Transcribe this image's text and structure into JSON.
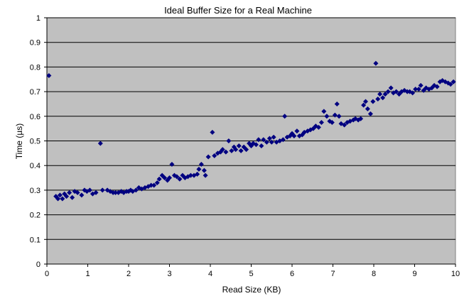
{
  "chart_data": {
    "type": "scatter",
    "title": "Ideal Buffer Size for a Real Machine",
    "xlabel": "Read Size (KB)",
    "ylabel": "Time (µs)",
    "xlim": [
      0,
      10
    ],
    "ylim": [
      0,
      1
    ],
    "x_ticks": [
      "0",
      "1",
      "2",
      "3",
      "4",
      "5",
      "6",
      "7",
      "8",
      "9",
      "10"
    ],
    "y_ticks": [
      "0",
      "0.1",
      "0.2",
      "0.3",
      "0.4",
      "0.5",
      "0.6",
      "0.7",
      "0.8",
      "0.9",
      "1"
    ],
    "grid": "horizontal",
    "legend": "none",
    "colors": {
      "plot_background": "#c0c0c0",
      "marker": "#000080",
      "gridline": "#000000"
    },
    "marker_shape": "diamond",
    "series": [
      {
        "points": [
          [
            0.05,
            0.765
          ],
          [
            0.22,
            0.275
          ],
          [
            0.27,
            0.265
          ],
          [
            0.32,
            0.28
          ],
          [
            0.38,
            0.265
          ],
          [
            0.43,
            0.285
          ],
          [
            0.48,
            0.275
          ],
          [
            0.55,
            0.29
          ],
          [
            0.62,
            0.27
          ],
          [
            0.68,
            0.295
          ],
          [
            0.75,
            0.29
          ],
          [
            0.85,
            0.28
          ],
          [
            0.92,
            0.3
          ],
          [
            0.98,
            0.295
          ],
          [
            1.05,
            0.3
          ],
          [
            1.12,
            0.285
          ],
          [
            1.2,
            0.29
          ],
          [
            1.31,
            0.49
          ],
          [
            1.36,
            0.3
          ],
          [
            1.48,
            0.3
          ],
          [
            1.55,
            0.295
          ],
          [
            1.62,
            0.29
          ],
          [
            1.68,
            0.29
          ],
          [
            1.75,
            0.29
          ],
          [
            1.82,
            0.295
          ],
          [
            1.88,
            0.29
          ],
          [
            1.95,
            0.295
          ],
          [
            2.0,
            0.295
          ],
          [
            2.05,
            0.3
          ],
          [
            2.1,
            0.295
          ],
          [
            2.18,
            0.3
          ],
          [
            2.25,
            0.31
          ],
          [
            2.32,
            0.305
          ],
          [
            2.4,
            0.31
          ],
          [
            2.48,
            0.315
          ],
          [
            2.55,
            0.32
          ],
          [
            2.62,
            0.32
          ],
          [
            2.7,
            0.33
          ],
          [
            2.75,
            0.345
          ],
          [
            2.82,
            0.36
          ],
          [
            2.88,
            0.35
          ],
          [
            2.95,
            0.34
          ],
          [
            3.0,
            0.35
          ],
          [
            3.06,
            0.405
          ],
          [
            3.12,
            0.36
          ],
          [
            3.18,
            0.355
          ],
          [
            3.25,
            0.345
          ],
          [
            3.32,
            0.36
          ],
          [
            3.38,
            0.35
          ],
          [
            3.45,
            0.355
          ],
          [
            3.52,
            0.36
          ],
          [
            3.6,
            0.36
          ],
          [
            3.68,
            0.365
          ],
          [
            3.72,
            0.385
          ],
          [
            3.78,
            0.405
          ],
          [
            3.85,
            0.38
          ],
          [
            3.88,
            0.36
          ],
          [
            3.95,
            0.435
          ],
          [
            4.05,
            0.535
          ],
          [
            4.1,
            0.44
          ],
          [
            4.18,
            0.45
          ],
          [
            4.25,
            0.455
          ],
          [
            4.3,
            0.465
          ],
          [
            4.38,
            0.455
          ],
          [
            4.45,
            0.5
          ],
          [
            4.52,
            0.46
          ],
          [
            4.58,
            0.475
          ],
          [
            4.62,
            0.465
          ],
          [
            4.7,
            0.48
          ],
          [
            4.75,
            0.46
          ],
          [
            4.82,
            0.475
          ],
          [
            4.88,
            0.465
          ],
          [
            4.95,
            0.49
          ],
          [
            5.0,
            0.48
          ],
          [
            5.05,
            0.49
          ],
          [
            5.12,
            0.485
          ],
          [
            5.18,
            0.505
          ],
          [
            5.25,
            0.48
          ],
          [
            5.3,
            0.505
          ],
          [
            5.38,
            0.495
          ],
          [
            5.45,
            0.51
          ],
          [
            5.5,
            0.495
          ],
          [
            5.55,
            0.515
          ],
          [
            5.62,
            0.495
          ],
          [
            5.7,
            0.5
          ],
          [
            5.78,
            0.505
          ],
          [
            5.82,
            0.6
          ],
          [
            5.88,
            0.515
          ],
          [
            5.95,
            0.52
          ],
          [
            6.0,
            0.53
          ],
          [
            6.05,
            0.52
          ],
          [
            6.12,
            0.54
          ],
          [
            6.18,
            0.52
          ],
          [
            6.25,
            0.525
          ],
          [
            6.3,
            0.535
          ],
          [
            6.38,
            0.54
          ],
          [
            6.45,
            0.545
          ],
          [
            6.52,
            0.55
          ],
          [
            6.58,
            0.56
          ],
          [
            6.65,
            0.555
          ],
          [
            6.72,
            0.575
          ],
          [
            6.78,
            0.62
          ],
          [
            6.85,
            0.6
          ],
          [
            6.92,
            0.58
          ],
          [
            6.98,
            0.575
          ],
          [
            7.05,
            0.605
          ],
          [
            7.1,
            0.65
          ],
          [
            7.15,
            0.6
          ],
          [
            7.2,
            0.57
          ],
          [
            7.28,
            0.565
          ],
          [
            7.35,
            0.575
          ],
          [
            7.42,
            0.58
          ],
          [
            7.5,
            0.585
          ],
          [
            7.55,
            0.59
          ],
          [
            7.62,
            0.585
          ],
          [
            7.68,
            0.59
          ],
          [
            7.75,
            0.645
          ],
          [
            7.8,
            0.66
          ],
          [
            7.85,
            0.63
          ],
          [
            7.92,
            0.61
          ],
          [
            7.98,
            0.66
          ],
          [
            8.05,
            0.815
          ],
          [
            8.1,
            0.67
          ],
          [
            8.15,
            0.69
          ],
          [
            8.22,
            0.675
          ],
          [
            8.28,
            0.69
          ],
          [
            8.35,
            0.7
          ],
          [
            8.42,
            0.715
          ],
          [
            8.48,
            0.695
          ],
          [
            8.55,
            0.7
          ],
          [
            8.62,
            0.69
          ],
          [
            8.68,
            0.7
          ],
          [
            8.75,
            0.705
          ],
          [
            8.82,
            0.7
          ],
          [
            8.88,
            0.7
          ],
          [
            8.95,
            0.695
          ],
          [
            9.02,
            0.71
          ],
          [
            9.1,
            0.71
          ],
          [
            9.15,
            0.725
          ],
          [
            9.22,
            0.705
          ],
          [
            9.28,
            0.715
          ],
          [
            9.35,
            0.71
          ],
          [
            9.42,
            0.715
          ],
          [
            9.48,
            0.725
          ],
          [
            9.55,
            0.72
          ],
          [
            9.62,
            0.74
          ],
          [
            9.68,
            0.745
          ],
          [
            9.75,
            0.74
          ],
          [
            9.82,
            0.735
          ],
          [
            9.88,
            0.73
          ],
          [
            9.95,
            0.74
          ]
        ]
      }
    ]
  }
}
